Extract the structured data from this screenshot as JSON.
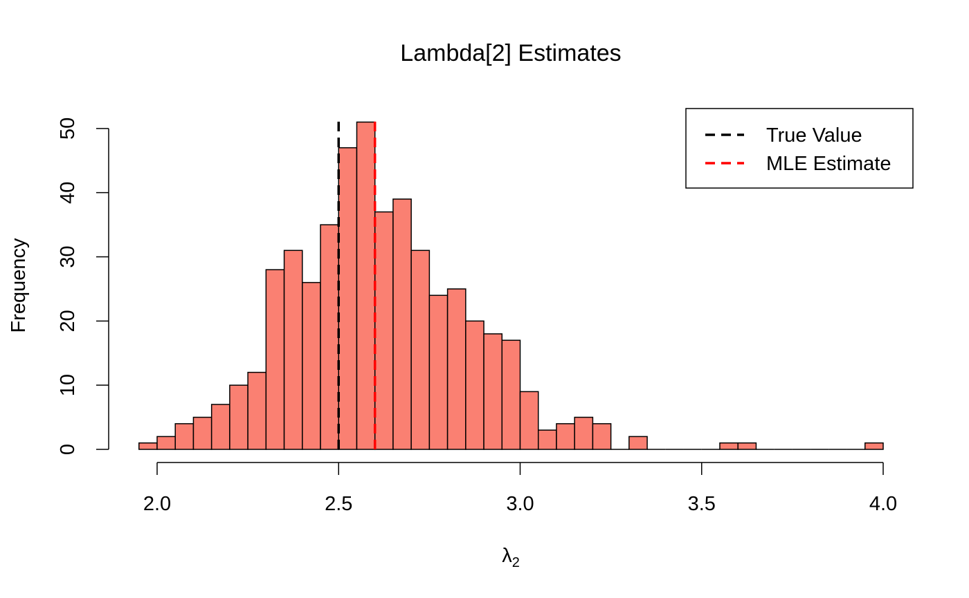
{
  "chart_data": {
    "type": "histogram",
    "title": "Lambda[2] Estimates",
    "xlabel": "λ",
    "xlabel_subscript": "2",
    "ylabel": "Frequency",
    "xlim": [
      1.9,
      4.05
    ],
    "ylim": [
      0,
      53
    ],
    "bin_width": 0.05,
    "bin_start": 1.95,
    "frequencies": [
      1,
      2,
      4,
      5,
      7,
      10,
      12,
      28,
      31,
      26,
      35,
      47,
      51,
      37,
      39,
      31,
      24,
      25,
      20,
      18,
      17,
      9,
      3,
      4,
      5,
      4,
      0,
      2,
      0,
      0,
      0,
      0,
      1,
      1,
      0,
      0,
      0,
      0,
      0,
      0,
      1
    ],
    "x_ticks": [
      2.0,
      2.5,
      3.0,
      3.5,
      4.0
    ],
    "x_tick_labels": [
      "2.0",
      "2.5",
      "3.0",
      "3.5",
      "4.0"
    ],
    "y_ticks": [
      0,
      10,
      20,
      30,
      40,
      50
    ],
    "y_tick_labels": [
      "0",
      "10",
      "20",
      "30",
      "40",
      "50"
    ],
    "bar_color": "#fa8072",
    "grid": false,
    "reference_lines": [
      {
        "name": "True Value",
        "x": 2.5,
        "color": "#000000"
      },
      {
        "name": "MLE Estimate",
        "x": 2.6,
        "color": "#ff0000"
      }
    ],
    "legend_position": "top-right"
  }
}
